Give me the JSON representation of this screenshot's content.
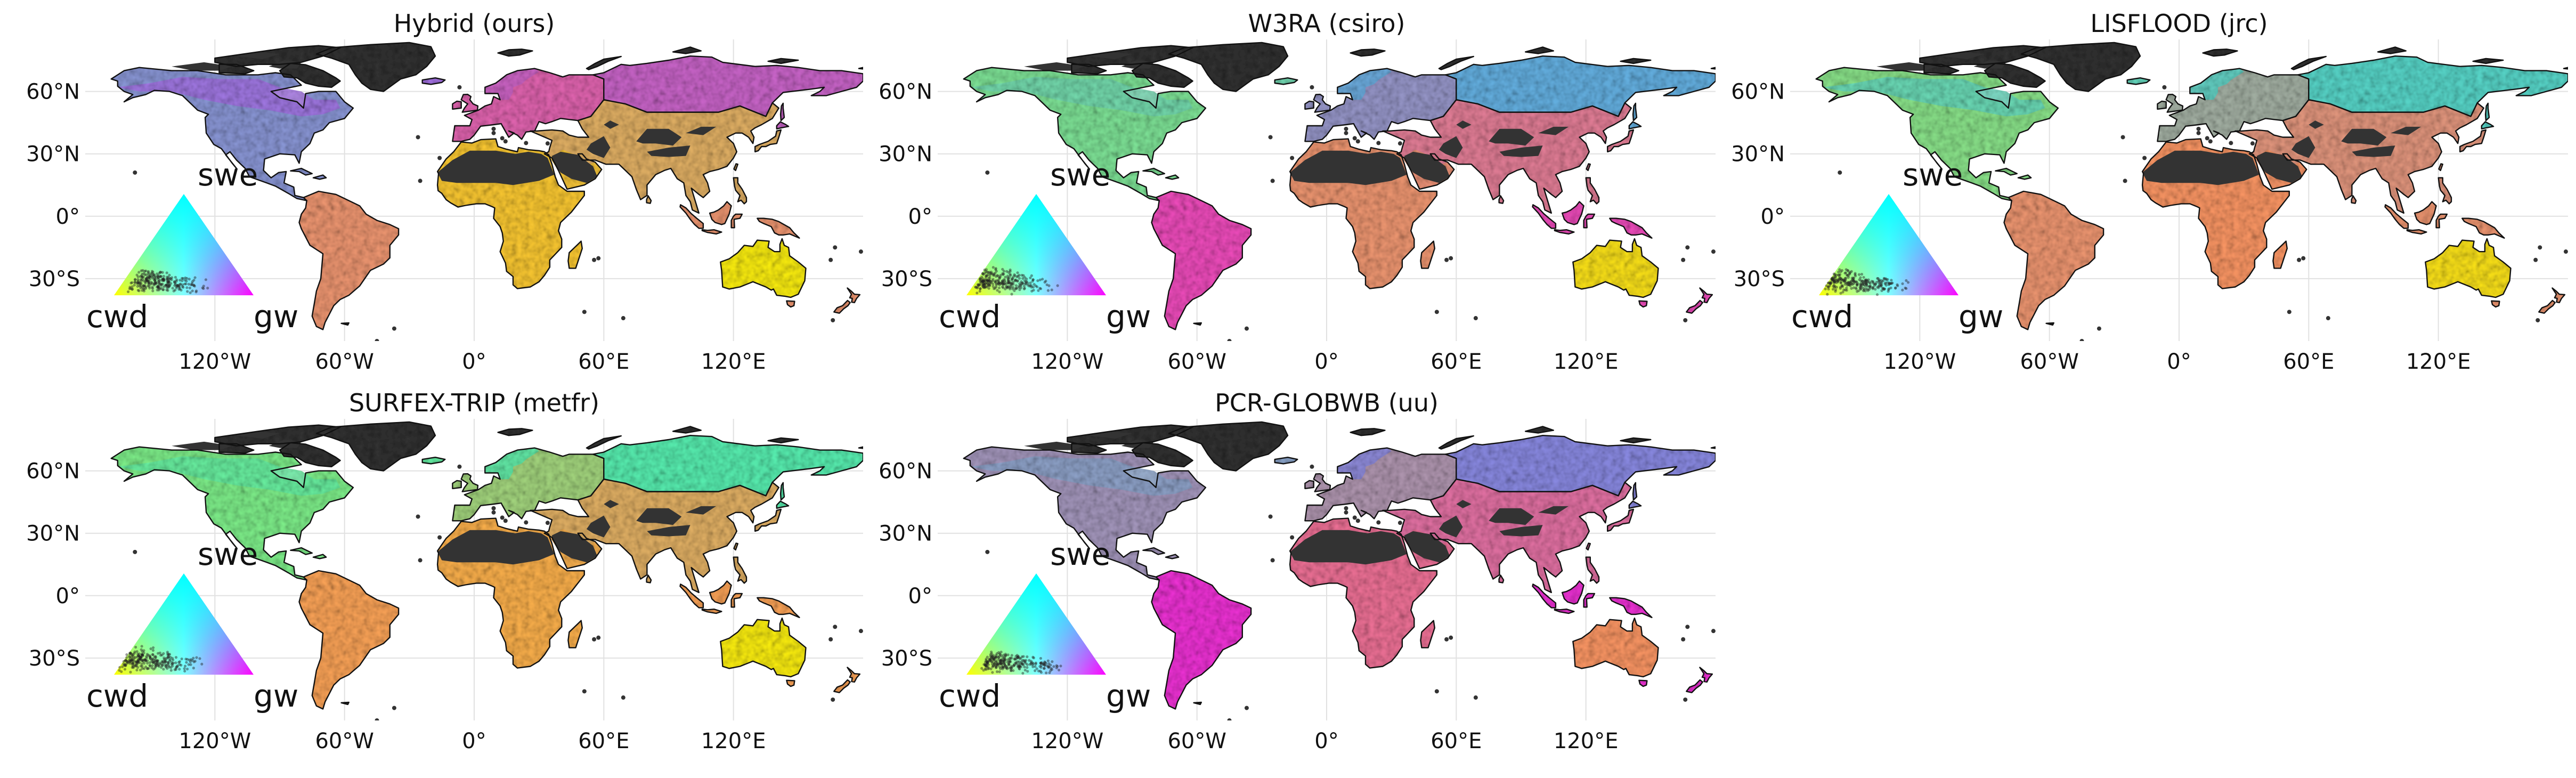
{
  "figure": {
    "colors": {
      "background": "#ffffff",
      "grid": "#e1e1e1",
      "masked": "#333333",
      "coast": "#111111",
      "text": "#111111",
      "swe": "#00ffff",
      "cwd": "#ffff00",
      "gw": "#ff00ff"
    },
    "axes": {
      "lat_labels": [
        "60°N",
        "30°N",
        "0°",
        "30°S"
      ],
      "lon_labels": [
        "120°W",
        "60°W",
        "0°",
        "60°E",
        "120°E"
      ],
      "lat_values": [
        60,
        30,
        0,
        -30
      ],
      "lon_values": [
        -120,
        -60,
        0,
        60,
        120
      ],
      "lon_range": [
        -180,
        180
      ],
      "lat_range": [
        -60,
        85
      ],
      "grid": true
    },
    "legend": {
      "top": "swe",
      "left": "cwd",
      "right": "gw",
      "placement": "lower-left"
    },
    "panels": [
      {
        "title": "Hybrid (ours)",
        "mix": {
          "north_america": [
            0.45,
            0.15,
            0.4
          ],
          "boreal_na": [
            0.35,
            0.1,
            0.55
          ],
          "south_america": [
            0.05,
            0.55,
            0.4
          ],
          "europe": [
            0.1,
            0.3,
            0.6
          ],
          "siberia": [
            0.2,
            0.2,
            0.6
          ],
          "africa": [
            0.0,
            0.8,
            0.2
          ],
          "south_asia": [
            0.1,
            0.6,
            0.3
          ],
          "australia": [
            0.0,
            0.95,
            0.05
          ]
        }
      },
      {
        "title": "W3RA (csiro)",
        "mix": {
          "north_america": [
            0.5,
            0.4,
            0.1
          ],
          "boreal_na": [
            0.55,
            0.3,
            0.15
          ],
          "south_america": [
            0.05,
            0.25,
            0.7
          ],
          "europe": [
            0.4,
            0.2,
            0.4
          ],
          "siberia": [
            0.6,
            0.1,
            0.3
          ],
          "africa": [
            0.05,
            0.55,
            0.4
          ],
          "south_asia": [
            0.1,
            0.4,
            0.5
          ],
          "australia": [
            0.0,
            0.9,
            0.1
          ]
        }
      },
      {
        "title": "LISFLOOD (jrc)",
        "mix": {
          "north_america": [
            0.45,
            0.45,
            0.1
          ],
          "boreal_na": [
            0.6,
            0.25,
            0.15
          ],
          "south_america": [
            0.05,
            0.55,
            0.4
          ],
          "europe": [
            0.35,
            0.35,
            0.3
          ],
          "siberia": [
            0.65,
            0.2,
            0.15
          ],
          "africa": [
            0.0,
            0.6,
            0.4
          ],
          "south_asia": [
            0.1,
            0.5,
            0.4
          ],
          "australia": [
            0.0,
            0.9,
            0.1
          ]
        }
      },
      {
        "title": "SURFEX-TRIP (metfr)",
        "mix": {
          "north_america": [
            0.5,
            0.45,
            0.05
          ],
          "boreal_na": [
            0.6,
            0.35,
            0.05
          ],
          "south_america": [
            0.0,
            0.65,
            0.35
          ],
          "europe": [
            0.35,
            0.5,
            0.15
          ],
          "siberia": [
            0.65,
            0.3,
            0.05
          ],
          "africa": [
            0.0,
            0.7,
            0.3
          ],
          "south_asia": [
            0.1,
            0.6,
            0.3
          ],
          "australia": [
            0.0,
            0.95,
            0.05
          ]
        }
      },
      {
        "title": "PCR-GLOBWB (uu)",
        "mix": {
          "north_america": [
            0.35,
            0.25,
            0.4
          ],
          "boreal_na": [
            0.45,
            0.2,
            0.35
          ],
          "south_america": [
            0.05,
            0.15,
            0.8
          ],
          "europe": [
            0.3,
            0.3,
            0.4
          ],
          "siberia": [
            0.45,
            0.1,
            0.45
          ],
          "africa": [
            0.05,
            0.4,
            0.55
          ],
          "south_asia": [
            0.1,
            0.35,
            0.55
          ],
          "australia": [
            0.0,
            0.6,
            0.4
          ]
        }
      }
    ]
  }
}
